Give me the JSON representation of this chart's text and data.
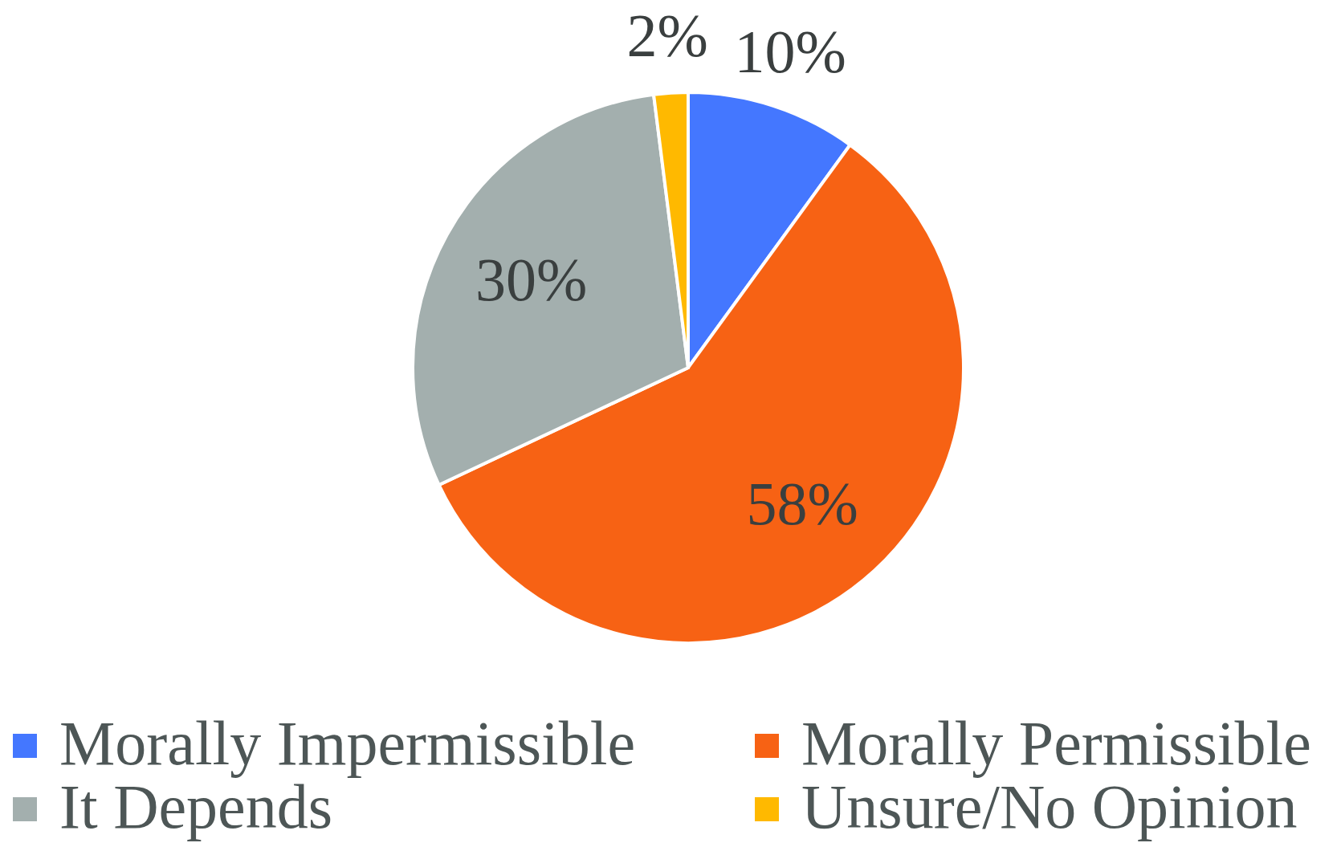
{
  "chart_data": {
    "type": "pie",
    "categories": [
      "Morally Impermissible",
      "Morally Permissible",
      "It Depends",
      "Unsure/No Opinion"
    ],
    "values": [
      10,
      58,
      30,
      2
    ],
    "value_labels": [
      "10%",
      "58%",
      "30%",
      "2%"
    ],
    "colors": [
      "#4477ff",
      "#f76214",
      "#a3afae",
      "#ffb900"
    ],
    "legend": "bottom"
  }
}
